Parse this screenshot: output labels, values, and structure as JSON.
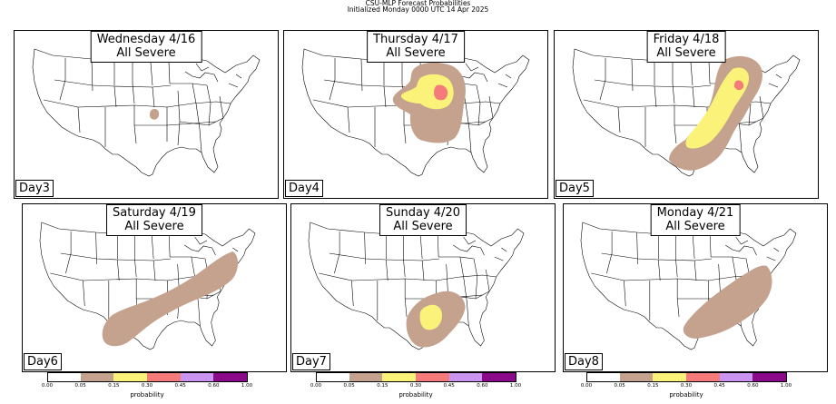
{
  "header": {
    "title": "CSU-MLP Forecast Probabilities",
    "subtitle": "Initialized Monday 0000 UTC 14 Apr 2025"
  },
  "panels": [
    {
      "day_title": "Wednesday 4/16",
      "hazard": "All Severe",
      "day_label": "Day3"
    },
    {
      "day_title": "Thursday 4/17",
      "hazard": "All Severe",
      "day_label": "Day4"
    },
    {
      "day_title": "Friday 4/18",
      "hazard": "All Severe",
      "day_label": "Day5"
    },
    {
      "day_title": "Saturday 4/19",
      "hazard": "All Severe",
      "day_label": "Day6"
    },
    {
      "day_title": "Sunday 4/20",
      "hazard": "All Severe",
      "day_label": "Day7"
    },
    {
      "day_title": "Monday 4/21",
      "hazard": "All Severe",
      "day_label": "Day8"
    }
  ],
  "colorbar": {
    "label": "probability",
    "ticks": [
      "0.00",
      "0.05",
      "0.15",
      "0.30",
      "0.45",
      "0.60",
      "1.00"
    ],
    "colors": [
      "#ffffff",
      "#c4a28e",
      "#fbf27a",
      "#f57a7a",
      "#c995f0",
      "#8a0a8a"
    ]
  },
  "colors": {
    "prob_05": "#c4a28e",
    "prob_15": "#fbf27a",
    "prob_30": "#f57a7a",
    "map_lines": "#000000",
    "background": "#ffffff"
  }
}
